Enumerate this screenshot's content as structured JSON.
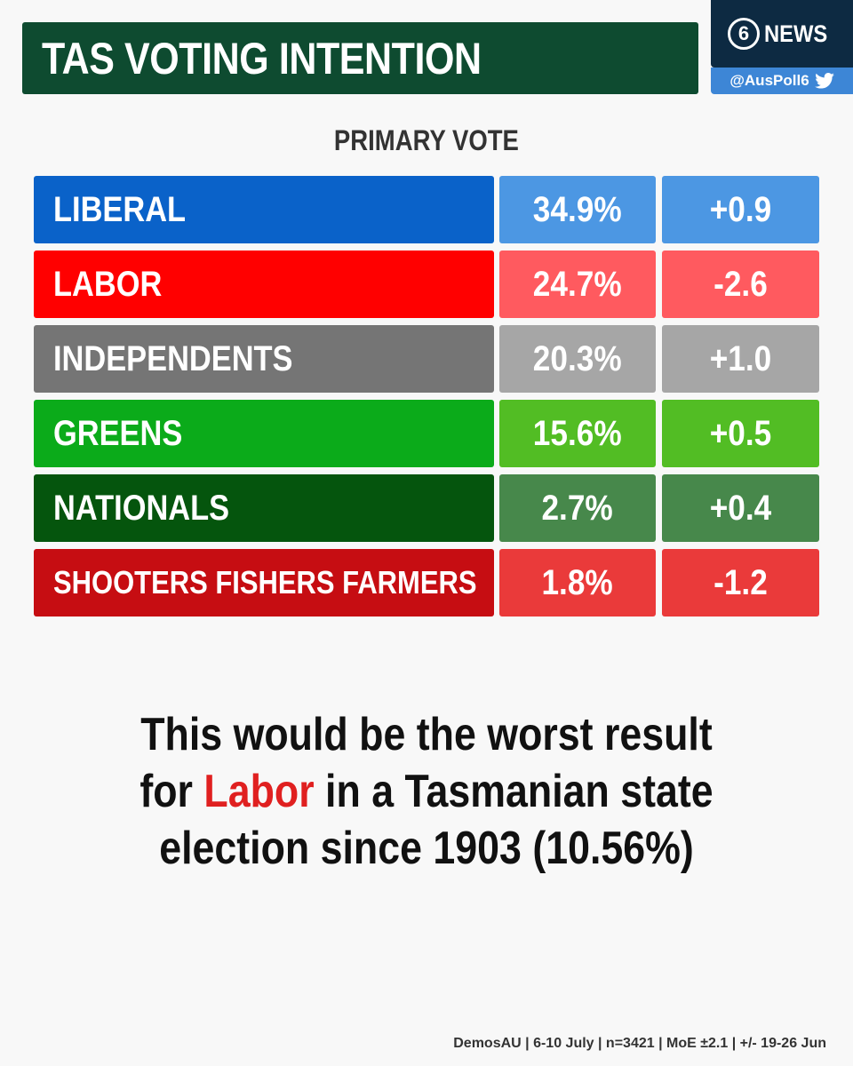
{
  "title": "TAS VOTING INTENTION",
  "logo": {
    "number": "6",
    "word": "NEWS",
    "handle": "@AusPoll6",
    "icon": "twitter-bird-icon"
  },
  "subtitle": "PRIMARY VOTE",
  "colors": {
    "title_bg": "#0e4b30",
    "liberal": [
      "#0a62c9",
      "#4c97e3"
    ],
    "labor": [
      "#ff0000",
      "#ff5a5f"
    ],
    "independents": [
      "#757575",
      "#a6a6a6"
    ],
    "greens": [
      "#0bab1a",
      "#52bd24"
    ],
    "nationals": [
      "#05550d",
      "#47884b"
    ],
    "sff": [
      "#c60d12",
      "#ea3a3a"
    ]
  },
  "chart_data": {
    "type": "table",
    "columns": [
      "Party",
      "Primary vote",
      "Change"
    ],
    "rows": [
      {
        "party": "LIBERAL",
        "value": 34.9,
        "value_label": "34.9%",
        "change": 0.9,
        "change_label": "+0.9",
        "color_key": "liberal"
      },
      {
        "party": "LABOR",
        "value": 24.7,
        "value_label": "24.7%",
        "change": -2.6,
        "change_label": "-2.6",
        "color_key": "labor"
      },
      {
        "party": "INDEPENDENTS",
        "value": 20.3,
        "value_label": "20.3%",
        "change": 1.0,
        "change_label": "+1.0",
        "color_key": "independents"
      },
      {
        "party": "GREENS",
        "value": 15.6,
        "value_label": "15.6%",
        "change": 0.5,
        "change_label": "+0.5",
        "color_key": "greens"
      },
      {
        "party": "NATIONALS",
        "value": 2.7,
        "value_label": "2.7%",
        "change": 0.4,
        "change_label": "+0.4",
        "color_key": "nationals"
      },
      {
        "party": "SHOOTERS FISHERS FARMERS",
        "value": 1.8,
        "value_label": "1.8%",
        "change": -1.2,
        "change_label": "-1.2",
        "color_key": "sff"
      }
    ]
  },
  "note": {
    "line1": "This would be the worst result",
    "line2_pre": "for ",
    "line2_highlight": "Labor",
    "line2_post": " in a Tasmanian state",
    "line3": "election since 1903 (10.56%)"
  },
  "footer": "DemosAU | 6-10 July | n=3421 | MoE ±2.1 | +/- 19-26 Jun"
}
